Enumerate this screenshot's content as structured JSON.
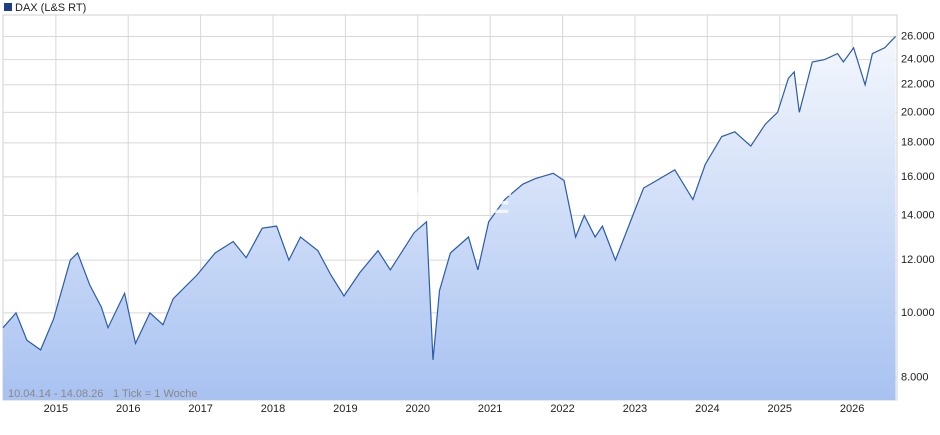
{
  "chart_data": {
    "type": "line",
    "legend": "DAX (L&S RT)",
    "watermark": "ARIVA.DE",
    "date_range": "10.04.14 - 14.08.26",
    "tick_note": "1 Tick = 1 Woche",
    "log_scale": true,
    "grid": true,
    "x": [
      2014.27,
      2014.45,
      2014.6,
      2014.79,
      2014.97,
      2015.2,
      2015.3,
      2015.47,
      2015.63,
      2015.72,
      2015.95,
      2016.1,
      2016.3,
      2016.48,
      2016.62,
      2016.95,
      2017.2,
      2017.45,
      2017.63,
      2017.85,
      2018.05,
      2018.22,
      2018.38,
      2018.62,
      2018.8,
      2018.98,
      2019.2,
      2019.45,
      2019.62,
      2019.95,
      2020.12,
      2020.21,
      2020.3,
      2020.45,
      2020.7,
      2020.83,
      2020.98,
      2021.2,
      2021.45,
      2021.62,
      2021.87,
      2022.02,
      2022.18,
      2022.3,
      2022.45,
      2022.55,
      2022.73,
      2022.97,
      2023.12,
      2023.3,
      2023.55,
      2023.8,
      2023.97,
      2024.2,
      2024.38,
      2024.6,
      2024.8,
      2024.97,
      2025.12,
      2025.2,
      2025.27,
      2025.45,
      2025.62,
      2025.8,
      2025.88,
      2026.02,
      2026.18,
      2026.28,
      2026.45,
      2026.6
    ],
    "series": [
      {
        "color": "#2b5ca8",
        "values": [
          9500,
          10000,
          9100,
          8800,
          9800,
          12000,
          12300,
          11000,
          10200,
          9500,
          10700,
          9000,
          10000,
          9600,
          10500,
          11400,
          12300,
          12800,
          12100,
          13400,
          13500,
          12000,
          13000,
          12400,
          11400,
          10600,
          11500,
          12400,
          11600,
          13200,
          13700,
          8500,
          10800,
          12300,
          13000,
          11600,
          13700,
          14800,
          15600,
          15900,
          16200,
          15800,
          13000,
          14000,
          13000,
          13500,
          12000,
          14000,
          15400,
          15800,
          16400,
          14800,
          16700,
          18400,
          18700,
          17800,
          19200,
          20000,
          22500,
          23000,
          20000,
          23800,
          24000,
          24500,
          23800,
          25000,
          22000,
          24500,
          25000,
          26000
        ]
      }
    ],
    "xlim": [
      2014.27,
      2026.62
    ],
    "xticks": [
      2015,
      2016,
      2017,
      2018,
      2019,
      2020,
      2021,
      2022,
      2023,
      2024,
      2025,
      2026
    ],
    "ylim": [
      7400,
      28000
    ],
    "yticks": [
      {
        "value": 8000,
        "label": "8.000"
      },
      {
        "value": 10000,
        "label": "10.000"
      },
      {
        "value": 12000,
        "label": "12.000"
      },
      {
        "value": 14000,
        "label": "14.000"
      },
      {
        "value": 16000,
        "label": "16.000"
      },
      {
        "value": 18000,
        "label": "18.000"
      },
      {
        "value": 20000,
        "label": "20.000"
      },
      {
        "value": 22000,
        "label": "22.000"
      },
      {
        "value": 24000,
        "label": "24.000"
      },
      {
        "value": 26000,
        "label": "26.000"
      }
    ]
  }
}
